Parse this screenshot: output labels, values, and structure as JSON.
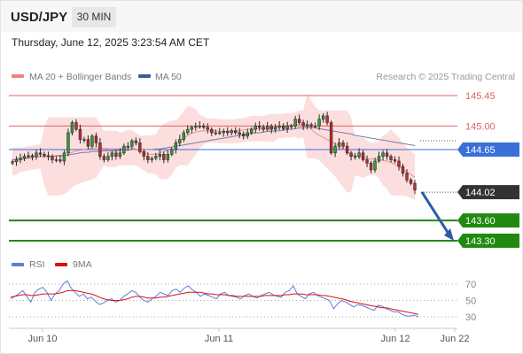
{
  "header": {
    "symbol": "USD/JPY",
    "timeframe": "30 MIN",
    "timestamp": "Thursday, June 12, 2025 3:23:54 AM CET"
  },
  "legend": {
    "ma20_label": "MA 20 + Bollinger Bands",
    "ma20_color": "#f08080",
    "ma50_label": "MA 50",
    "ma50_color": "#3c5a9a",
    "credit": "Research © 2025 Trading Central"
  },
  "rsi_legend": {
    "rsi_label": "RSI",
    "rsi_color": "#5b7fd8",
    "ma9_label": "9MA",
    "ma9_color": "#dd1111"
  },
  "chart_data": [
    {
      "type": "candlestick",
      "title": "",
      "ylim": [
        143.3,
        145.5
      ],
      "levels": [
        {
          "label": "145.45",
          "value": 145.45,
          "color": "#e06060",
          "kind": "resistance"
        },
        {
          "label": "145.00",
          "value": 145.0,
          "color": "#e06060",
          "kind": "resistance"
        },
        {
          "label": "144.65",
          "value": 144.65,
          "color": "#3a70d8",
          "kind": "pivot"
        },
        {
          "label": "144.02",
          "value": 144.02,
          "color": "#111111",
          "kind": "last"
        },
        {
          "label": "143.60",
          "value": 143.6,
          "color": "#1f8a0f",
          "kind": "support"
        },
        {
          "label": "143.30",
          "value": 143.3,
          "color": "#1f8a0f",
          "kind": "support"
        }
      ],
      "x_ticks": [
        "Jun 10",
        "Jun 11",
        "Jun 12",
        "Jun 22"
      ],
      "forecast": {
        "from": 144.02,
        "to": 143.3,
        "color": "#2d5ca8"
      },
      "candles_close": [
        144.47,
        144.5,
        144.52,
        144.55,
        144.56,
        144.55,
        144.6,
        144.58,
        144.56,
        144.55,
        144.5,
        144.5,
        144.48,
        144.6,
        144.9,
        145.05,
        144.95,
        144.8,
        144.8,
        144.7,
        144.85,
        144.75,
        144.55,
        144.5,
        144.55,
        144.6,
        144.55,
        144.6,
        144.7,
        144.7,
        144.78,
        144.75,
        144.62,
        144.55,
        144.5,
        144.52,
        144.55,
        144.58,
        144.5,
        144.58,
        144.65,
        144.75,
        144.8,
        144.9,
        144.95,
        144.98,
        145.0,
        145.0,
        144.98,
        144.95,
        144.9,
        144.9,
        144.9,
        144.92,
        144.9,
        144.93,
        144.9,
        144.88,
        144.85,
        144.9,
        144.95,
        145.0,
        144.98,
        144.95,
        145.0,
        144.95,
        144.98,
        145.0,
        144.96,
        145.0,
        145.0,
        145.1,
        145.05,
        145.0,
        145.02,
        145.0,
        145.0,
        145.1,
        145.15,
        145.05,
        144.6,
        144.7,
        144.75,
        144.7,
        144.6,
        144.55,
        144.55,
        144.6,
        144.5,
        144.45,
        144.35,
        144.48,
        144.55,
        144.6,
        144.55,
        144.5,
        144.48,
        144.4,
        144.3,
        144.2,
        144.15,
        144.05
      ],
      "ma20": [
        144.47,
        144.48,
        144.5,
        144.51,
        144.52,
        144.53,
        144.54,
        144.55,
        144.55,
        144.55,
        144.55,
        144.55,
        144.55,
        144.56,
        144.58,
        144.61,
        144.63,
        144.64,
        144.65,
        144.66,
        144.67,
        144.68,
        144.68,
        144.67,
        144.66,
        144.66,
        144.66,
        144.66,
        144.67,
        144.68,
        144.68,
        144.66,
        144.62,
        144.6,
        144.58,
        144.58,
        144.58,
        144.6,
        144.62,
        144.64,
        144.68,
        144.73,
        144.78,
        144.82,
        144.86,
        144.89,
        144.91,
        144.92,
        144.93,
        144.93,
        144.93,
        144.93,
        144.92,
        144.92,
        144.92,
        144.92,
        144.92,
        144.93,
        144.94,
        144.95,
        144.96,
        144.96,
        144.96,
        144.96,
        144.97,
        144.97,
        144.98,
        145.0,
        145.0,
        145.01,
        145.01,
        145.02,
        145.02,
        145.03,
        145.0,
        144.95,
        144.9,
        144.86,
        144.83,
        144.8,
        144.77,
        144.74,
        144.7,
        144.66,
        144.62,
        144.58,
        144.56,
        144.54,
        144.53,
        144.52,
        144.51,
        144.51,
        144.5,
        144.49,
        144.48,
        144.46,
        144.43,
        144.4,
        144.36,
        144.32,
        144.28,
        144.24
      ],
      "ma50": [
        144.5,
        144.51,
        144.52,
        144.53,
        144.53,
        144.54,
        144.54,
        144.55,
        144.55,
        144.55,
        144.55,
        144.56,
        144.56,
        144.56,
        144.57,
        144.58,
        144.59,
        144.6,
        144.61,
        144.61,
        144.62,
        144.62,
        144.62,
        144.63,
        144.63,
        144.63,
        144.63,
        144.64,
        144.64,
        144.64,
        144.65,
        144.65,
        144.65,
        144.65,
        144.65,
        144.65,
        144.66,
        144.66,
        144.67,
        144.68,
        144.69,
        144.7,
        144.71,
        144.72,
        144.73,
        144.74,
        144.75,
        144.76,
        144.77,
        144.78,
        144.79,
        144.8,
        144.81,
        144.82,
        144.83,
        144.84,
        144.85,
        144.86,
        144.87,
        144.88,
        144.89,
        144.9,
        144.9,
        144.91,
        144.92,
        144.92,
        144.93,
        144.93,
        144.94,
        144.95,
        144.95,
        144.96,
        144.97,
        144.97,
        144.98,
        144.98,
        144.97,
        144.96,
        144.95,
        144.94,
        144.93,
        144.92,
        144.91,
        144.9,
        144.89,
        144.88,
        144.86,
        144.85,
        144.84,
        144.83,
        144.82,
        144.81,
        144.8,
        144.79,
        144.78,
        144.77,
        144.76,
        144.75,
        144.74,
        144.73,
        144.72,
        144.71
      ]
    },
    {
      "type": "line",
      "title": "",
      "ylim": [
        20,
        80
      ],
      "y_ticks": [
        70,
        50,
        30
      ],
      "series": [
        {
          "name": "RSI",
          "values": [
            52,
            55,
            58,
            62,
            55,
            48,
            60,
            64,
            66,
            60,
            50,
            58,
            62,
            70,
            74,
            65,
            60,
            55,
            58,
            52,
            54,
            49,
            45,
            47,
            50,
            52,
            48,
            50,
            55,
            58,
            62,
            60,
            54,
            50,
            48,
            52,
            55,
            60,
            58,
            56,
            62,
            64,
            60,
            65,
            68,
            63,
            60,
            55,
            58,
            56,
            54,
            52,
            58,
            60,
            56,
            55,
            54,
            52,
            56,
            58,
            55,
            53,
            56,
            58,
            60,
            57,
            55,
            54,
            60,
            62,
            68,
            58,
            55,
            52,
            58,
            60,
            56,
            54,
            52,
            50,
            40,
            46,
            50,
            48,
            45,
            42,
            45,
            44,
            42,
            40,
            38,
            44,
            43,
            40,
            38,
            36,
            36,
            33,
            31,
            31,
            32,
            30
          ]
        },
        {
          "name": "9MA",
          "values": [
            54,
            55,
            56,
            57,
            57,
            56,
            56,
            57,
            58,
            58,
            58,
            58,
            59,
            60,
            62,
            62,
            62,
            61,
            60,
            59,
            58,
            56,
            54,
            52,
            51,
            50,
            50,
            50,
            51,
            52,
            54,
            55,
            55,
            54,
            53,
            53,
            53,
            54,
            54,
            55,
            56,
            57,
            58,
            59,
            60,
            60,
            60,
            60,
            59,
            58,
            58,
            57,
            57,
            57,
            56,
            56,
            55,
            55,
            55,
            55,
            55,
            55,
            55,
            56,
            56,
            56,
            56,
            56,
            57,
            57,
            58,
            58,
            58,
            57,
            57,
            57,
            57,
            56,
            56,
            55,
            54,
            53,
            52,
            51,
            49,
            48,
            47,
            46,
            45,
            44,
            43,
            42,
            41,
            41,
            40,
            39,
            38,
            37,
            36,
            35,
            34,
            33
          ]
        }
      ]
    }
  ]
}
